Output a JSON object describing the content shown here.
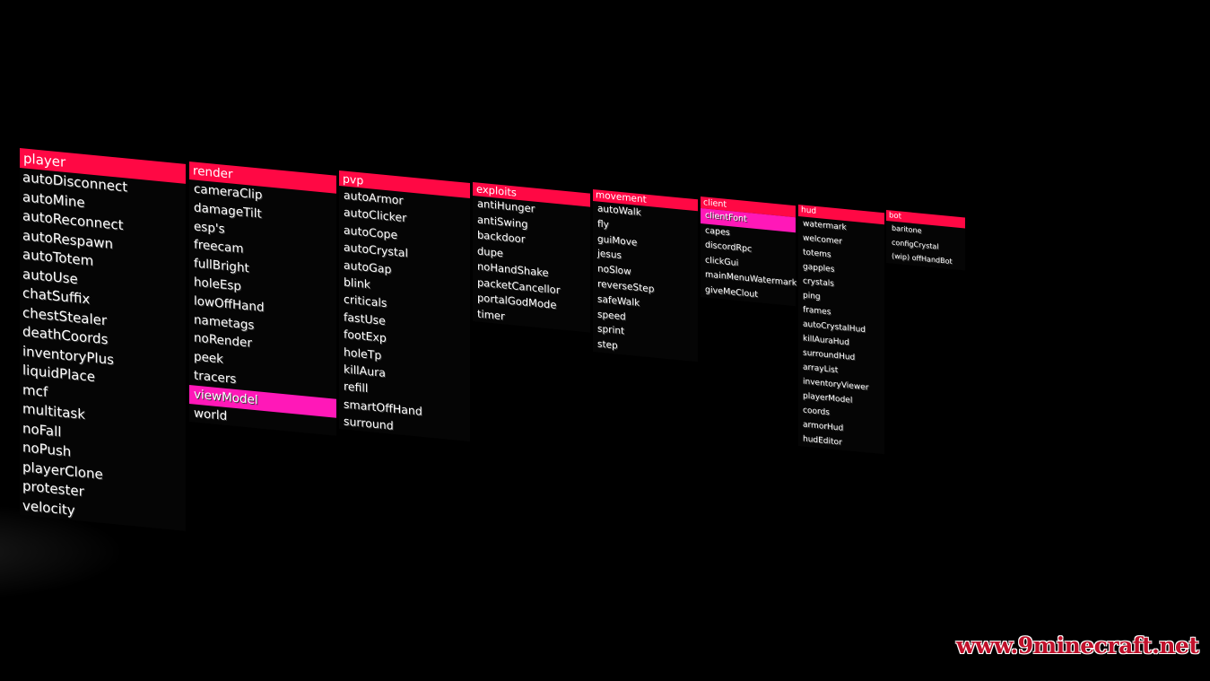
{
  "colors": {
    "background": "#000000",
    "header": "#ff0844",
    "active_item": "#ff18b8",
    "text": "#ffffff",
    "watermark": "#c0102a"
  },
  "panels": {
    "player": {
      "title": "player",
      "items": [
        "autoDisconnect",
        "autoMine",
        "autoReconnect",
        "autoRespawn",
        "autoTotem",
        "autoUse",
        "chatSuffix",
        "chestStealer",
        "deathCoords",
        "inventoryPlus",
        "liquidPlace",
        "mcf",
        "multitask",
        "noFall",
        "noPush",
        "playerClone",
        "protester",
        "velocity"
      ]
    },
    "render": {
      "title": "render",
      "items": [
        "cameraClip",
        "damageTilt",
        "esp's",
        "freecam",
        "fullBright",
        "holeEsp",
        "lowOffHand",
        "nametags",
        "noRender",
        "peek",
        "tracers",
        "viewModel",
        "world"
      ],
      "active": "viewModel"
    },
    "pvp": {
      "title": "pvp",
      "items": [
        "autoArmor",
        "autoClicker",
        "autoCope",
        "autoCrystal",
        "autoGap",
        "blink",
        "criticals",
        "fastUse",
        "footExp",
        "holeTp",
        "killAura",
        "refill",
        "smartOffHand",
        "surround"
      ]
    },
    "exploits": {
      "title": "exploits",
      "items": [
        "antiHunger",
        "antiSwing",
        "backdoor",
        "dupe",
        "noHandShake",
        "packetCancellor",
        "portalGodMode",
        "timer"
      ]
    },
    "movement": {
      "title": "movement",
      "items": [
        "autoWalk",
        "fly",
        "guiMove",
        "jesus",
        "noSlow",
        "reverseStep",
        "safeWalk",
        "speed",
        "sprint",
        "step"
      ]
    },
    "client": {
      "title": "client",
      "items": [
        "clientFont",
        "capes",
        "discordRpc",
        "clickGui",
        "mainMenuWatermark",
        "giveMeClout"
      ],
      "active": "clientFont"
    },
    "hud": {
      "title": "hud",
      "items": [
        "watermark",
        "welcomer",
        "totems",
        "gapples",
        "crystals",
        "ping",
        "frames",
        "autoCrystalHud",
        "killAuraHud",
        "surroundHud",
        "arrayList",
        "inventoryViewer",
        "playerModel",
        "coords",
        "armorHud",
        "hudEditor"
      ]
    },
    "bot": {
      "title": "bot",
      "items": [
        "baritone",
        "configCrystal",
        "(wip) offHandBot"
      ]
    }
  },
  "watermark": "www.9minecraft.net"
}
